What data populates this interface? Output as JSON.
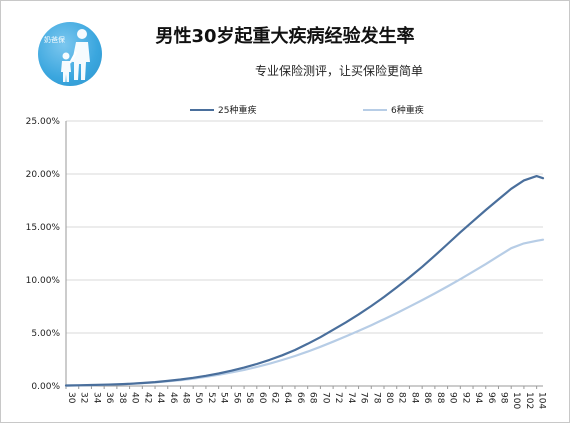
{
  "header": {
    "title": "男性30岁起重大疾病经验发生率",
    "subtitle": "专业保险测评，让买保险更简单",
    "logo_text": "奶爸保"
  },
  "colors": {
    "series1": "#4a6f9c",
    "series2": "#b7cde6",
    "gridline": "#d9d9d9",
    "axis": "#9a9a9a"
  },
  "chart_data": {
    "type": "line",
    "title": "男性30岁起重大疾病经验发生率",
    "xlabel": "",
    "ylabel": "",
    "ylim": [
      0,
      25
    ],
    "y_ticks": [
      "0.00%",
      "5.00%",
      "10.00%",
      "15.00%",
      "20.00%",
      "25.00%"
    ],
    "x_tick_labels": [
      "30",
      "32",
      "34",
      "36",
      "38",
      "40",
      "42",
      "44",
      "46",
      "48",
      "50",
      "52",
      "54",
      "56",
      "58",
      "60",
      "62",
      "64",
      "66",
      "68",
      "70",
      "72",
      "74",
      "76",
      "78",
      "80",
      "82",
      "84",
      "86",
      "88",
      "90",
      "92",
      "94",
      "96",
      "98",
      "100",
      "102",
      "104"
    ],
    "grid": true,
    "legend_position": "top",
    "x": [
      30,
      32,
      34,
      36,
      38,
      40,
      42,
      44,
      46,
      48,
      50,
      52,
      54,
      56,
      58,
      60,
      62,
      64,
      66,
      68,
      70,
      72,
      74,
      76,
      78,
      80,
      82,
      84,
      86,
      88,
      90,
      92,
      94,
      96,
      98,
      100,
      102,
      104,
      105
    ],
    "series": [
      {
        "name": "25种重疾",
        "values": [
          0.05,
          0.07,
          0.09,
          0.12,
          0.16,
          0.21,
          0.28,
          0.37,
          0.48,
          0.61,
          0.77,
          0.96,
          1.18,
          1.44,
          1.74,
          2.08,
          2.46,
          2.9,
          3.4,
          3.98,
          4.6,
          5.3,
          6.0,
          6.75,
          7.55,
          8.4,
          9.3,
          10.25,
          11.25,
          12.3,
          13.4,
          14.5,
          15.55,
          16.6,
          17.6,
          18.6,
          19.4,
          19.8,
          19.6
        ]
      },
      {
        "name": "6种重疾",
        "values": [
          0.04,
          0.06,
          0.08,
          0.11,
          0.15,
          0.2,
          0.26,
          0.34,
          0.44,
          0.56,
          0.7,
          0.87,
          1.06,
          1.28,
          1.52,
          1.8,
          2.1,
          2.45,
          2.83,
          3.25,
          3.7,
          4.18,
          4.68,
          5.2,
          5.74,
          6.3,
          6.88,
          7.48,
          8.1,
          8.74,
          9.4,
          10.08,
          10.78,
          11.5,
          12.25,
          13.0,
          13.45,
          13.7,
          13.8
        ]
      }
    ]
  }
}
